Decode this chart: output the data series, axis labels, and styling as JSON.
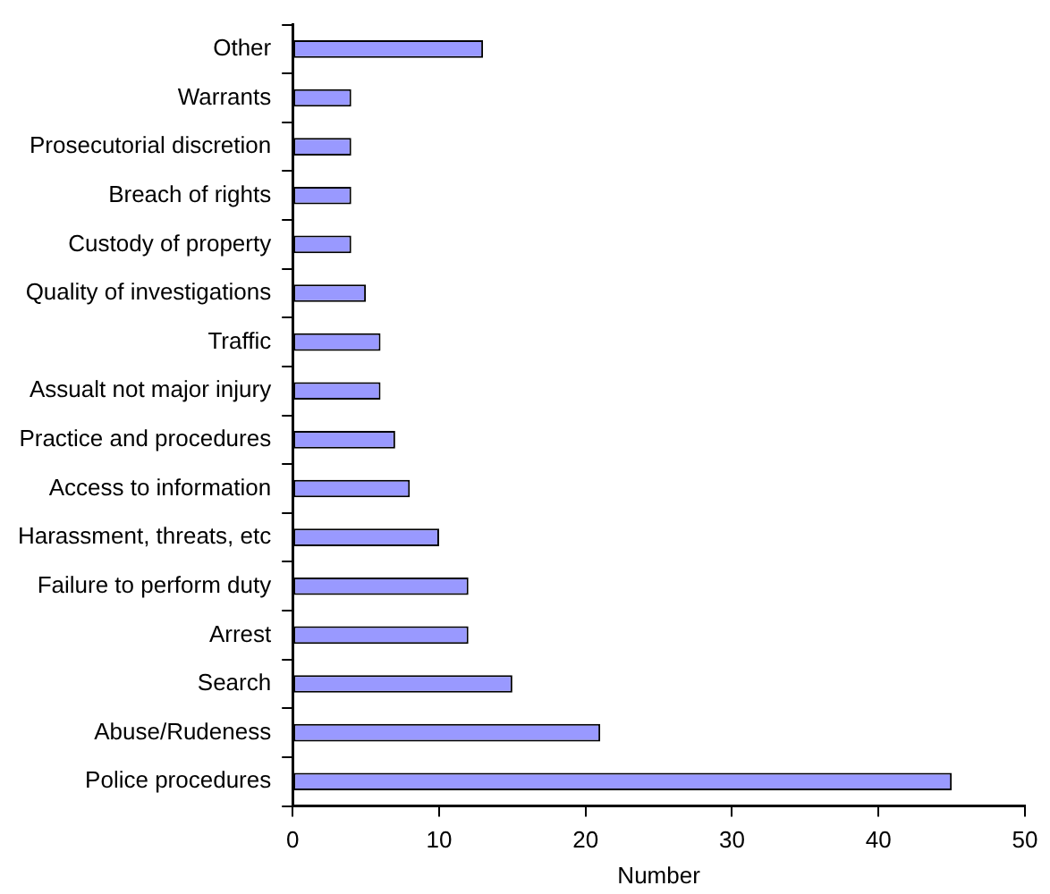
{
  "chart_data": {
    "type": "bar",
    "orientation": "horizontal",
    "xlabel": "Number",
    "categories": [
      "Other",
      "Warrants",
      "Prosecutorial discretion",
      "Breach of rights",
      "Custody of property",
      "Quality of investigations",
      "Traffic",
      "Assualt not major injury",
      "Practice and procedures",
      "Access to information",
      "Harassment, threats, etc",
      "Failure to perform duty",
      "Arrest",
      "Search",
      "Abuse/Rudeness",
      "Police procedures"
    ],
    "values": [
      13,
      4,
      4,
      4,
      4,
      5,
      6,
      6,
      7,
      8,
      10,
      12,
      12,
      15,
      21,
      45
    ],
    "color": "#9999ff",
    "xlim": [
      0,
      50
    ],
    "xticks": [
      0,
      10,
      20,
      30,
      40,
      50
    ]
  }
}
